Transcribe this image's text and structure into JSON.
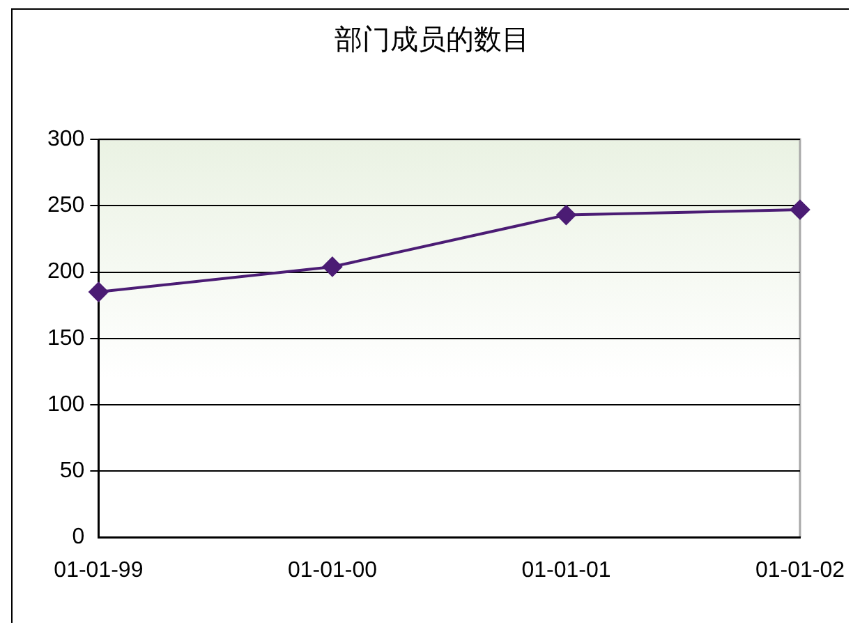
{
  "chart_data": {
    "type": "line",
    "title": "部门成员的数目",
    "categories": [
      "01-01-99",
      "01-01-00",
      "01-01-01",
      "01-01-02"
    ],
    "series": [
      {
        "color": "#4b1c74",
        "values": [
          185,
          204,
          243,
          247
        ]
      }
    ],
    "ylim": [
      0,
      300
    ],
    "yticks": [
      0,
      50,
      100,
      150,
      200,
      250,
      300
    ],
    "grid": "y",
    "legend": false,
    "marker": "diamond",
    "line_style": "solid"
  }
}
